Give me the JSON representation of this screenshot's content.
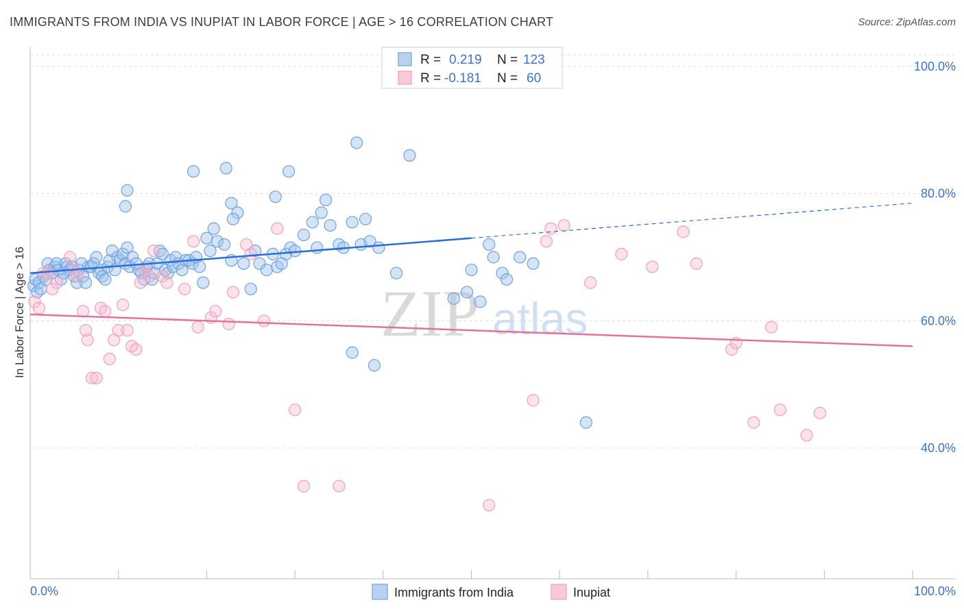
{
  "title": "IMMIGRANTS FROM INDIA VS INUPIAT IN LABOR FORCE | AGE > 16 CORRELATION CHART",
  "source": "Source: ZipAtlas.com",
  "watermark": {
    "zip": "ZIP",
    "atlas": "atlas"
  },
  "colors": {
    "blue": "#6fa1e0",
    "blue_line": "#2a6fd1",
    "pink": "#f0a0bb",
    "pink_line": "#e2729b",
    "tick": "#3b73c8"
  },
  "legend": {
    "rows": [
      {
        "r_label": "R =",
        "r_value": "0.219",
        "n_label": "N =",
        "n_value": "123"
      },
      {
        "r_label": "R =",
        "r_value": "-0.181",
        "n_label": "N =",
        "n_value": "60"
      }
    ]
  },
  "bottom_legend": [
    "Immigrants from India",
    "Inupiat"
  ],
  "chart_data": {
    "type": "scatter",
    "xlabel": "",
    "ylabel": "In Labor Force | Age > 16",
    "xlim": [
      0,
      100
    ],
    "ylim": [
      20,
      100
    ],
    "x_tick_labels": [
      "0.0%",
      "100.0%"
    ],
    "y_tick_labels": [
      "100.0%",
      "80.0%",
      "60.0%",
      "40.0%"
    ],
    "y_ticks": [
      100,
      80,
      60,
      40
    ],
    "grid": true,
    "series": [
      {
        "name": "Immigrants from India",
        "color": "#6fa1e0",
        "trend": {
          "x0": 0,
          "y0": 67.5,
          "x1": 50,
          "y1": 73.0,
          "dashed_to": 100,
          "dashed_y": 78.5
        },
        "points": [
          [
            0.4,
            65.5
          ],
          [
            0.6,
            66.5
          ],
          [
            0.8,
            64.5
          ],
          [
            1.0,
            66.0
          ],
          [
            1.2,
            65.0
          ],
          [
            1.5,
            67.0
          ],
          [
            1.8,
            66.5
          ],
          [
            2.0,
            69.0
          ],
          [
            2.2,
            68.0
          ],
          [
            2.5,
            67.5
          ],
          [
            2.8,
            68.5
          ],
          [
            3.0,
            69.0
          ],
          [
            3.2,
            68.0
          ],
          [
            3.5,
            66.5
          ],
          [
            3.8,
            67.5
          ],
          [
            4.0,
            69.0
          ],
          [
            4.2,
            68.5
          ],
          [
            4.5,
            68.0
          ],
          [
            4.8,
            68.5
          ],
          [
            5.0,
            67.0
          ],
          [
            5.3,
            66.0
          ],
          [
            5.5,
            68.0
          ],
          [
            5.8,
            69.0
          ],
          [
            6.0,
            67.0
          ],
          [
            6.3,
            66.0
          ],
          [
            6.6,
            68.5
          ],
          [
            6.9,
            68.5
          ],
          [
            7.2,
            69.0
          ],
          [
            7.5,
            70.0
          ],
          [
            7.8,
            67.5
          ],
          [
            8.0,
            68.0
          ],
          [
            8.2,
            67.0
          ],
          [
            8.5,
            66.5
          ],
          [
            8.8,
            68.5
          ],
          [
            9.0,
            69.5
          ],
          [
            9.3,
            71.0
          ],
          [
            9.6,
            68.0
          ],
          [
            9.9,
            70.0
          ],
          [
            10.2,
            69.5
          ],
          [
            10.5,
            70.5
          ],
          [
            10.8,
            69.0
          ],
          [
            11.0,
            71.5
          ],
          [
            11.3,
            68.5
          ],
          [
            11.6,
            70.0
          ],
          [
            12.0,
            69.0
          ],
          [
            12.3,
            68.0
          ],
          [
            12.6,
            67.5
          ],
          [
            12.9,
            66.5
          ],
          [
            13.2,
            68.5
          ],
          [
            13.5,
            69.0
          ],
          [
            13.8,
            66.5
          ],
          [
            14.1,
            67.5
          ],
          [
            14.4,
            69.0
          ],
          [
            14.7,
            71.0
          ],
          [
            15.0,
            70.5
          ],
          [
            15.3,
            68.0
          ],
          [
            15.6,
            67.5
          ],
          [
            15.9,
            69.5
          ],
          [
            16.2,
            68.5
          ],
          [
            16.5,
            70.0
          ],
          [
            16.8,
            69.0
          ],
          [
            17.2,
            68.0
          ],
          [
            17.6,
            69.5
          ],
          [
            18.0,
            69.5
          ],
          [
            18.4,
            69.0
          ],
          [
            18.8,
            70.0
          ],
          [
            19.2,
            68.5
          ],
          [
            19.6,
            66.0
          ],
          [
            20.0,
            73.0
          ],
          [
            20.4,
            71.0
          ],
          [
            20.8,
            74.5
          ],
          [
            21.2,
            72.5
          ],
          [
            22.0,
            72.0
          ],
          [
            22.8,
            69.5
          ],
          [
            23.5,
            77.0
          ],
          [
            24.2,
            69.0
          ],
          [
            25.0,
            65.0
          ],
          [
            25.5,
            71.0
          ],
          [
            26.0,
            69.0
          ],
          [
            26.8,
            68.0
          ],
          [
            27.5,
            70.5
          ],
          [
            28.0,
            68.5
          ],
          [
            28.5,
            69.0
          ],
          [
            29.0,
            70.5
          ],
          [
            29.5,
            71.5
          ],
          [
            30.0,
            71.0
          ],
          [
            31.0,
            73.5
          ],
          [
            32.0,
            75.5
          ],
          [
            32.5,
            71.5
          ],
          [
            33.0,
            77.0
          ],
          [
            34.0,
            75.0
          ],
          [
            35.0,
            72.0
          ],
          [
            35.5,
            71.5
          ],
          [
            36.5,
            75.5
          ],
          [
            37.5,
            72.0
          ],
          [
            38.5,
            72.5
          ],
          [
            39.5,
            71.5
          ],
          [
            10.8,
            78.0
          ],
          [
            11.0,
            80.5
          ],
          [
            18.5,
            83.5
          ],
          [
            22.2,
            84.0
          ],
          [
            22.8,
            78.5
          ],
          [
            23.0,
            76.0
          ],
          [
            27.8,
            79.5
          ],
          [
            29.3,
            83.5
          ],
          [
            33.5,
            79.0
          ],
          [
            37.0,
            88.0
          ],
          [
            38.0,
            76.0
          ],
          [
            41.5,
            67.5
          ],
          [
            48.0,
            63.5
          ],
          [
            49.5,
            64.5
          ],
          [
            50.0,
            68.0
          ],
          [
            52.0,
            72.0
          ],
          [
            52.5,
            70.0
          ],
          [
            53.5,
            67.5
          ],
          [
            54.0,
            66.5
          ],
          [
            55.5,
            70.0
          ],
          [
            57.0,
            69.0
          ],
          [
            36.5,
            55.0
          ],
          [
            39.0,
            53.0
          ],
          [
            43.0,
            86.0
          ],
          [
            51.0,
            63.0
          ],
          [
            63.0,
            44.0
          ]
        ]
      },
      {
        "name": "Inupiat",
        "color": "#f0a0bb",
        "trend": {
          "x0": 0,
          "y0": 61.0,
          "x1": 100,
          "y1": 56.0
        },
        "points": [
          [
            0.5,
            63.0
          ],
          [
            1.0,
            62.0
          ],
          [
            1.5,
            67.5
          ],
          [
            2.0,
            67.5
          ],
          [
            2.5,
            65.0
          ],
          [
            3.0,
            66.0
          ],
          [
            4.5,
            70.0
          ],
          [
            5.0,
            68.0
          ],
          [
            5.3,
            67.0
          ],
          [
            6.0,
            61.5
          ],
          [
            6.3,
            58.5
          ],
          [
            6.5,
            57.0
          ],
          [
            7.0,
            51.0
          ],
          [
            7.5,
            51.0
          ],
          [
            8.0,
            62.0
          ],
          [
            8.5,
            61.5
          ],
          [
            9.0,
            54.0
          ],
          [
            9.5,
            57.0
          ],
          [
            10.0,
            58.5
          ],
          [
            10.5,
            62.5
          ],
          [
            11.0,
            58.5
          ],
          [
            11.5,
            56.0
          ],
          [
            12.0,
            55.5
          ],
          [
            12.5,
            66.0
          ],
          [
            13.0,
            68.0
          ],
          [
            13.5,
            67.0
          ],
          [
            14.0,
            71.0
          ],
          [
            15.0,
            67.0
          ],
          [
            15.5,
            66.0
          ],
          [
            17.5,
            65.0
          ],
          [
            18.5,
            72.5
          ],
          [
            19.0,
            59.0
          ],
          [
            20.5,
            60.5
          ],
          [
            21.0,
            61.5
          ],
          [
            22.5,
            59.5
          ],
          [
            23.0,
            64.5
          ],
          [
            24.5,
            72.0
          ],
          [
            25.0,
            70.5
          ],
          [
            26.5,
            60.0
          ],
          [
            28.0,
            74.5
          ],
          [
            30.0,
            46.0
          ],
          [
            31.0,
            34.0
          ],
          [
            35.0,
            34.0
          ],
          [
            52.0,
            31.0
          ],
          [
            57.0,
            47.5
          ],
          [
            58.5,
            72.5
          ],
          [
            59.0,
            74.5
          ],
          [
            60.5,
            75.0
          ],
          [
            63.5,
            66.0
          ],
          [
            67.0,
            70.5
          ],
          [
            70.5,
            68.5
          ],
          [
            74.0,
            74.0
          ],
          [
            75.5,
            69.0
          ],
          [
            79.5,
            55.5
          ],
          [
            80.0,
            56.5
          ],
          [
            82.0,
            44.0
          ],
          [
            84.0,
            59.0
          ],
          [
            85.0,
            46.0
          ],
          [
            88.0,
            42.0
          ],
          [
            89.5,
            45.5
          ]
        ]
      }
    ]
  }
}
